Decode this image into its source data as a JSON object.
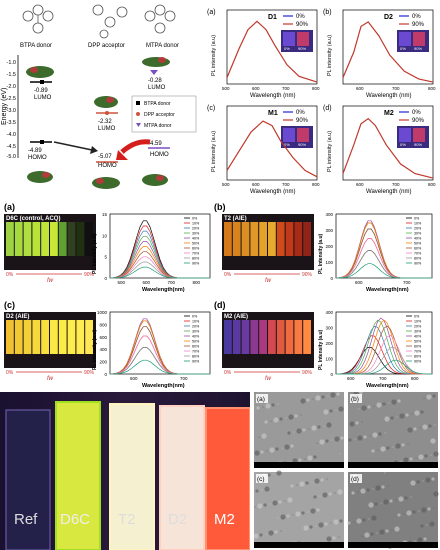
{
  "energy_diagram": {
    "donor_labels": [
      "BTPA donor",
      "DPP acceptor",
      "MTPA donor"
    ],
    "ylabel": "Energy (eV)",
    "yticks": [
      "-1.0",
      "-1.5",
      "-2.0",
      "-2.5",
      "-3.0",
      "-3.5",
      "-4.0",
      "-4.5",
      "-5.0"
    ],
    "levels": [
      {
        "text": "-0.89",
        "sub": "LUMO"
      },
      {
        "text": "-2.32",
        "sub": "LUMO"
      },
      {
        "text": "-0.28",
        "sub": "LUMO"
      },
      {
        "text": "-4.89",
        "sub": "HOMO"
      },
      {
        "text": "-5.07",
        "sub": "HOMO"
      },
      {
        "text": "-4.59",
        "sub": "HOMO"
      }
    ],
    "legend": [
      "BTPA donor",
      "DPP acceptor",
      "MTPA donor"
    ]
  },
  "spectra_top": [
    {
      "tag": "(a)",
      "title": "D1",
      "legend": [
        "0%",
        "90%"
      ],
      "inset": [
        "0%",
        "90%"
      ]
    },
    {
      "tag": "(b)",
      "title": "D2",
      "legend": [
        "0%",
        "90%"
      ],
      "inset": [
        "0%",
        "90%"
      ]
    },
    {
      "tag": "(c)",
      "title": "M1",
      "legend": [
        "0%",
        "90%"
      ],
      "inset": [
        "0%",
        "90%"
      ]
    },
    {
      "tag": "(d)",
      "title": "M2",
      "legend": [
        "0%",
        "90%"
      ],
      "inset": [
        "0%",
        "90%"
      ]
    }
  ],
  "spectra_top_axes": {
    "xlabel": "Wavelength (nm)",
    "ylabel": "PL intensity (a.u)",
    "xticks": [
      "500",
      "600",
      "700",
      "800"
    ]
  },
  "middle_panels": [
    {
      "tag": "(a)",
      "photo_label": "D6C (control, ACQ)",
      "fw_start": "0%",
      "fw_end": "90%",
      "fw": "fw",
      "ylabel": "PL Intensity (a.u)",
      "xlabel": "Wavelength(nm)",
      "yticks": [
        "0",
        "5",
        "10",
        "15"
      ],
      "xticks": [
        "500",
        "600",
        "700",
        "800"
      ]
    },
    {
      "tag": "(b)",
      "photo_label": "T2 (AIE)",
      "fw_start": "0%",
      "fw_end": "90%",
      "fw": "fw",
      "ylabel": "PL Intensity (a.u)",
      "xlabel": "Wavelength(nm)",
      "yticks": [
        "0",
        "100",
        "200",
        "300",
        "400"
      ],
      "xticks": [
        "600",
        "700"
      ]
    },
    {
      "tag": "(c)",
      "photo_label": "D2 (AIE)",
      "fw_start": "0%",
      "fw_end": "90%",
      "fw": "fw",
      "ylabel": "PL Intensity (a.u)",
      "xlabel": "Wavelength(nm)",
      "yticks": [
        "0",
        "200",
        "400",
        "600",
        "800",
        "1000"
      ],
      "xticks": [
        "600",
        "700"
      ]
    },
    {
      "tag": "(d)",
      "photo_label": "M2 (AIE)",
      "fw_start": "0%",
      "fw_end": "90%",
      "fw": "fw",
      "ylabel": "PL Intensity (a.u)",
      "xlabel": "Wavelength(nm)",
      "yticks": [
        "0",
        "100",
        "200",
        "300",
        "400"
      ],
      "xticks": [
        "600",
        "700",
        "800"
      ]
    }
  ],
  "series_legend": [
    "0%",
    "10%",
    "20%",
    "30%",
    "40%",
    "50%",
    "60%",
    "70%",
    "80%",
    "90%"
  ],
  "series_colors": [
    "#000000",
    "#e41a1c",
    "#377eb8",
    "#4daf4a",
    "#984ea3",
    "#ff7f00",
    "#a65628",
    "#f781bf",
    "#999999",
    "#1b9e77"
  ],
  "bottom_photo": {
    "labels": [
      "Ref",
      "D6C",
      "T2",
      "D2",
      "M2"
    ]
  },
  "sem_tags": [
    "(a)",
    "(b)",
    "(c)",
    "(d)"
  ],
  "chart_data": [
    {
      "type": "line",
      "title": "D1",
      "xlabel": "Wavelength (nm)",
      "ylabel": "PL intensity (a.u)",
      "xlim": [
        500,
        800
      ],
      "ylim": [
        0,
        1
      ],
      "series": [
        {
          "name": "0%",
          "x": [
            500,
            540,
            570,
            600,
            630,
            660,
            700,
            740,
            800
          ],
          "y": [
            0.1,
            0.55,
            0.85,
            0.98,
            0.85,
            0.6,
            0.3,
            0.12,
            0.03
          ]
        },
        {
          "name": "90%",
          "x": [
            500,
            540,
            570,
            600,
            630,
            660,
            700,
            740,
            800
          ],
          "y": [
            0.1,
            0.55,
            0.85,
            0.98,
            0.85,
            0.6,
            0.3,
            0.12,
            0.03
          ]
        }
      ]
    },
    {
      "type": "line",
      "title": "D2",
      "xlabel": "Wavelength (nm)",
      "ylabel": "PL intensity (a.u)",
      "xlim": [
        550,
        800
      ],
      "ylim": [
        0,
        1
      ],
      "series": [
        {
          "name": "0%",
          "x": [
            550,
            580,
            600,
            620,
            650,
            680,
            720,
            760,
            800
          ],
          "y": [
            0.1,
            0.5,
            0.9,
            0.97,
            0.75,
            0.45,
            0.2,
            0.08,
            0.03
          ]
        },
        {
          "name": "90%",
          "x": [
            550,
            580,
            600,
            620,
            650,
            680,
            720,
            760,
            800
          ],
          "y": [
            0.1,
            0.5,
            0.9,
            0.97,
            0.75,
            0.45,
            0.2,
            0.08,
            0.03
          ]
        }
      ]
    },
    {
      "type": "line",
      "title": "M1",
      "xlabel": "Wavelength (nm)",
      "ylabel": "PL intensity (a.u)",
      "xlim": [
        500,
        800
      ],
      "ylim": [
        0,
        1
      ],
      "series": [
        {
          "name": "0%",
          "x": [
            500,
            540,
            580,
            620,
            650,
            680,
            720,
            760,
            800
          ],
          "y": [
            0.15,
            0.45,
            0.75,
            0.92,
            0.85,
            0.6,
            0.35,
            0.15,
            0.05
          ]
        },
        {
          "name": "90%",
          "x": [
            500,
            540,
            580,
            620,
            650,
            680,
            720,
            760,
            800
          ],
          "y": [
            0.15,
            0.45,
            0.75,
            0.92,
            0.85,
            0.6,
            0.35,
            0.15,
            0.05
          ]
        }
      ]
    },
    {
      "type": "line",
      "title": "M2",
      "xlabel": "Wavelength (nm)",
      "ylabel": "PL intensity (a.u)",
      "xlim": [
        550,
        800
      ],
      "ylim": [
        0,
        1
      ],
      "series": [
        {
          "name": "0%",
          "x": [
            550,
            580,
            600,
            620,
            640,
            670,
            710,
            750,
            800
          ],
          "y": [
            0.1,
            0.55,
            0.88,
            0.96,
            0.85,
            0.55,
            0.25,
            0.1,
            0.03
          ]
        },
        {
          "name": "90%",
          "x": [
            550,
            580,
            600,
            620,
            640,
            670,
            710,
            750,
            800
          ],
          "y": [
            0.1,
            0.55,
            0.88,
            0.96,
            0.85,
            0.55,
            0.25,
            0.1,
            0.03
          ]
        }
      ]
    }
  ]
}
